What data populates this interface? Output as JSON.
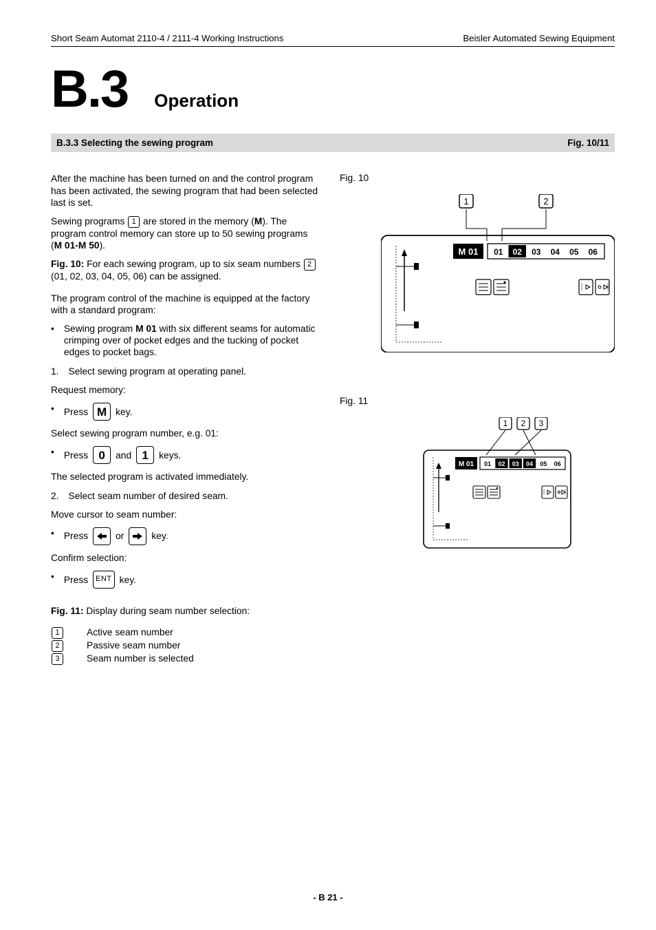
{
  "header": {
    "left": "Short Seam Automat 2110-4 / 2111-4 Working Instructions",
    "right": "Beisler Automated Sewing Equipment"
  },
  "chapter": {
    "num": "B.3",
    "title": "Operation"
  },
  "section_bar": {
    "title": "B.3.3 Selecting the sewing program",
    "figref": "Fig. 10/11"
  },
  "body": {
    "p1": "After the machine has been turned on and the control program has been activated, the sewing program that had been selected last is set.",
    "p2a": "Sewing programs ",
    "p2_box": "1",
    "p2b": " are stored in the memory (",
    "p2_m": "M",
    "p2c": "). The program control memory can store up to 50 sewing programs (",
    "p2_range": "M 01-M 50",
    "p2d": ").",
    "p3a": "Fig. 10:",
    "p3b": " For each sewing program, up to six seam numbers ",
    "p3_box": "2",
    "p3c": "  (01, 02, 03, 04, 05, 06) can be assigned.",
    "p4": "The program control of the machine is equipped at the factory with a standard program:",
    "b1a": "Sewing program ",
    "b1_m": "M 01",
    "b1b": " with six different seams for automatic crimping over of pocket edges and the tucking of pocket edges to pocket bags.",
    "n1": "Select sewing program at operating panel.",
    "p5": "Request memory:",
    "b2a": "Press ",
    "b2_key": "M",
    "b2b": " key.",
    "p6": "Select sewing program number, e.g. 01:",
    "b3a": "Press ",
    "b3_k1": "0",
    "b3_mid": " and ",
    "b3_k2": "1",
    "b3b": " keys.",
    "p7": "The selected program is activated immediately.",
    "n2": "Select seam number of desired seam.",
    "p8": "Move cursor to seam number:",
    "b4a": "Press ",
    "b4_mid": " or ",
    "b4b": " key.",
    "p9": "Confirm selection:",
    "b5a": "Press ",
    "b5_key": "ENT",
    "b5b": " key.",
    "p10a": "Fig. 11:",
    "p10b": " Display during seam number selection:",
    "l1n": "1",
    "l1t": "Active seam number",
    "l2n": "2",
    "l2t": "Passive seam number",
    "l3n": "3",
    "l3t": "Seam number is selected"
  },
  "fig10": {
    "label": "Fig. 10",
    "callouts": [
      "1",
      "2"
    ],
    "prog": "M 01",
    "seams": [
      "01",
      "02",
      "03",
      "04",
      "05",
      "06"
    ],
    "highlight_index": 1
  },
  "fig11": {
    "label": "Fig. 11",
    "callouts": [
      "1",
      "2",
      "3"
    ],
    "prog": "M 01",
    "seams": [
      "01",
      "02",
      "03",
      "04",
      "05",
      "06"
    ],
    "highlight_indices": [
      1,
      2,
      3
    ]
  },
  "footer": "- B 21 -",
  "colors": {
    "bar_bg": "#d9d9d9",
    "black": "#000000",
    "white": "#ffffff"
  }
}
